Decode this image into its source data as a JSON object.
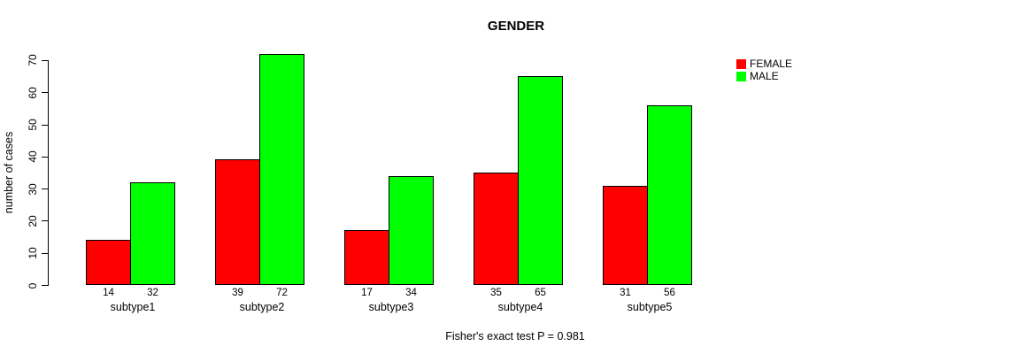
{
  "background_color": "#ffffff",
  "chart_data": {
    "type": "bar",
    "title": "GENDER",
    "ylabel": "number of cases",
    "xlabel": "",
    "caption": "Fisher's exact test P = 0.981",
    "categories": [
      "subtype1",
      "subtype2",
      "subtype3",
      "subtype4",
      "subtype5"
    ],
    "series": [
      {
        "name": "FEMALE",
        "color": "#ff0000",
        "values": [
          14,
          39,
          17,
          35,
          31
        ]
      },
      {
        "name": "MALE",
        "color": "#00ff00",
        "values": [
          32,
          72,
          34,
          65,
          56
        ]
      }
    ],
    "yticks": [
      0,
      10,
      20,
      30,
      40,
      50,
      60,
      70
    ],
    "ylim": [
      0,
      72
    ],
    "grid": false,
    "bar_border_color": "#000000",
    "value_labels_shown": true,
    "legend_position": "right"
  }
}
